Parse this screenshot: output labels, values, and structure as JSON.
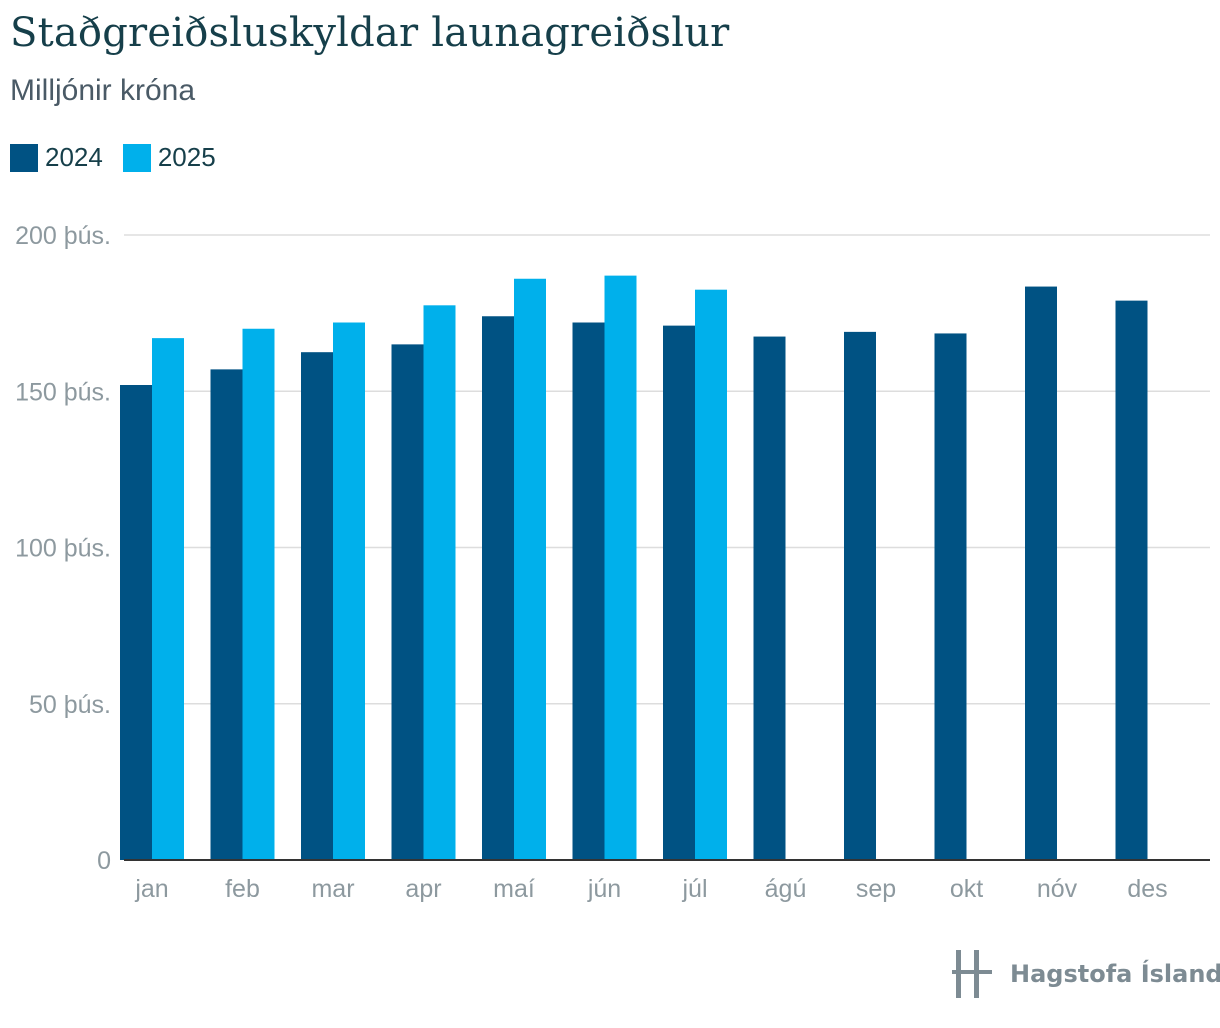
{
  "chart_data": {
    "type": "bar",
    "title": "Staðgreiðsluskyldar launagreiðslur",
    "subtitle": "Milljónir króna",
    "categories": [
      "jan",
      "feb",
      "mar",
      "apr",
      "maí",
      "jún",
      "júl",
      "ágú",
      "sep",
      "okt",
      "nóv",
      "des"
    ],
    "series": [
      {
        "name": "2024",
        "color": "#005283",
        "values": [
          152000,
          157000,
          162500,
          165000,
          174000,
          172000,
          171000,
          167500,
          169000,
          168500,
          183500,
          179000
        ]
      },
      {
        "name": "2025",
        "color": "#00b0eb",
        "values": [
          167000,
          170000,
          172000,
          177500,
          186000,
          187000,
          182500,
          null,
          null,
          null,
          null,
          null
        ]
      }
    ],
    "y_ticks": [
      {
        "value": 0,
        "label": "0"
      },
      {
        "value": 50000,
        "label": "50 þús."
      },
      {
        "value": 100000,
        "label": "100 þús."
      },
      {
        "value": 150000,
        "label": "150 þús."
      },
      {
        "value": 200000,
        "label": "200 þús."
      }
    ],
    "ylim": [
      0,
      200000
    ],
    "grid": true,
    "legend_position": "top-left"
  },
  "branding": {
    "logo_text": "Hagstofa Íslands"
  }
}
